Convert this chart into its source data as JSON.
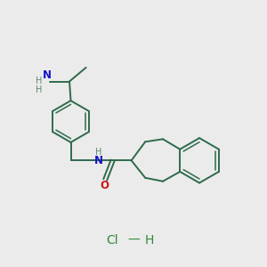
{
  "background_color": "#ebebeb",
  "bond_color": "#2d6b4a",
  "n_color": "#1414cc",
  "o_color": "#cc1414",
  "h_color": "#5a8a6a",
  "cl_h_color": "#2d8a3a",
  "figsize": [
    3.0,
    3.0
  ],
  "dpi": 100,
  "xlim": [
    0,
    10
  ],
  "ylim": [
    0,
    10
  ]
}
